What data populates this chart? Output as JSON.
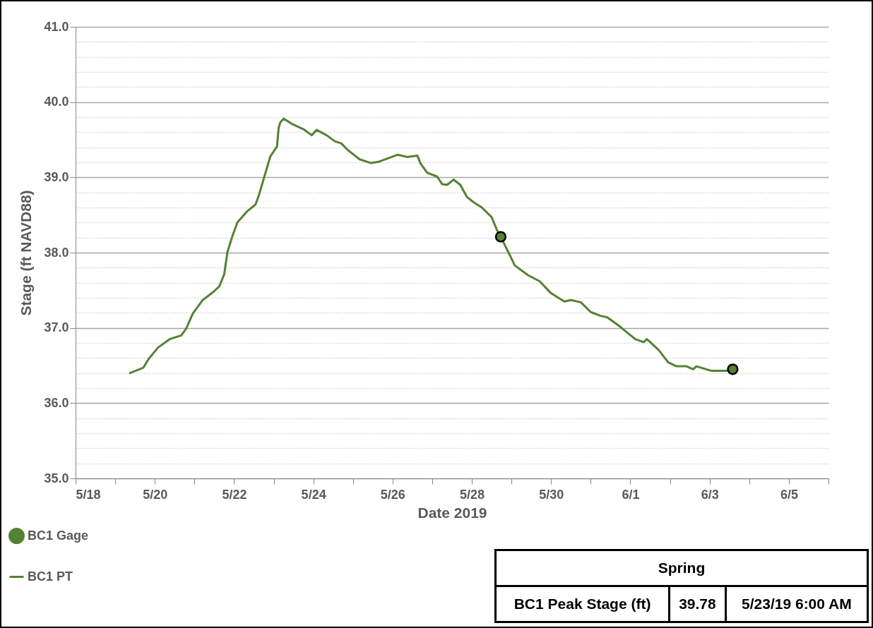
{
  "chart_data": {
    "type": "line",
    "xlabel": "Date 2019",
    "ylabel": "Stage (ft NAVD88)",
    "xlim": [
      "2019-05-18",
      "2019-06-06"
    ],
    "xticks": [
      {
        "value": "2019-05-18",
        "label": "5/18"
      },
      {
        "value": "2019-05-19",
        "label": null
      },
      {
        "value": "2019-05-20",
        "label": "5/20"
      },
      {
        "value": "2019-05-21",
        "label": null
      },
      {
        "value": "2019-05-22",
        "label": "5/22"
      },
      {
        "value": "2019-05-23",
        "label": null
      },
      {
        "value": "2019-05-24",
        "label": "5/24"
      },
      {
        "value": "2019-05-25",
        "label": null
      },
      {
        "value": "2019-05-26",
        "label": "5/26"
      },
      {
        "value": "2019-05-27",
        "label": null
      },
      {
        "value": "2019-05-28",
        "label": "5/28"
      },
      {
        "value": "2019-05-29",
        "label": null
      },
      {
        "value": "2019-05-30",
        "label": "5/30"
      },
      {
        "value": "2019-05-31",
        "label": null
      },
      {
        "value": "2019-06-01",
        "label": "6/1"
      },
      {
        "value": "2019-06-02",
        "label": null
      },
      {
        "value": "2019-06-03",
        "label": "6/3"
      },
      {
        "value": "2019-06-04",
        "label": null
      },
      {
        "value": "2019-06-05",
        "label": "6/5"
      },
      {
        "value": "2019-06-06",
        "label": null
      }
    ],
    "ylim": [
      35,
      41
    ],
    "yticks": [
      {
        "value": 35,
        "label": "35.0"
      },
      {
        "value": 35.2,
        "label": null
      },
      {
        "value": 35.4,
        "label": null
      },
      {
        "value": 35.6,
        "label": null
      },
      {
        "value": 35.8,
        "label": null
      },
      {
        "value": 36,
        "label": "36.0"
      },
      {
        "value": 36.2,
        "label": null
      },
      {
        "value": 36.4,
        "label": null
      },
      {
        "value": 36.6,
        "label": null
      },
      {
        "value": 36.8,
        "label": null
      },
      {
        "value": 37,
        "label": "37.0"
      },
      {
        "value": 37.2,
        "label": null
      },
      {
        "value": 37.4,
        "label": null
      },
      {
        "value": 37.6,
        "label": null
      },
      {
        "value": 37.8,
        "label": null
      },
      {
        "value": 38,
        "label": "38.0"
      },
      {
        "value": 38.2,
        "label": null
      },
      {
        "value": 38.4,
        "label": null
      },
      {
        "value": 38.6,
        "label": null
      },
      {
        "value": 38.8,
        "label": null
      },
      {
        "value": 39,
        "label": "39.0"
      },
      {
        "value": 39.2,
        "label": null
      },
      {
        "value": 39.4,
        "label": null
      },
      {
        "value": 39.6,
        "label": null
      },
      {
        "value": 39.8,
        "label": null
      },
      {
        "value": 40,
        "label": "40.0"
      },
      {
        "value": 40.2,
        "label": null
      },
      {
        "value": 40.4,
        "label": null
      },
      {
        "value": 40.6,
        "label": null
      },
      {
        "value": 40.8,
        "label": null
      },
      {
        "value": 41,
        "label": "41.0"
      }
    ],
    "grid": "y",
    "legend": "bottom left",
    "series": [
      {
        "name": "BC1 Gage",
        "type": "scatter",
        "marker": "circle",
        "color": "#548235",
        "x": [
          "2019-05-28T17:30",
          "2019-06-03T14:00"
        ],
        "values": [
          38.21,
          36.45
        ]
      },
      {
        "name": "BC1 PT",
        "type": "line",
        "marker": "none",
        "line_style": "solid",
        "color": "#548235",
        "x": [
          "2019-05-19T09:00",
          "2019-05-19T17:00",
          "2019-05-19T20:00",
          "2019-05-20T02:00",
          "2019-05-20T09:00",
          "2019-05-20T16:00",
          "2019-05-20T19:00",
          "2019-05-20T23:00",
          "2019-05-21T05:00",
          "2019-05-21T11:00",
          "2019-05-21T15:00",
          "2019-05-21T18:00",
          "2019-05-21T20:00",
          "2019-05-21T23:00",
          "2019-05-22T02:00",
          "2019-05-22T08:00",
          "2019-05-22T13:00",
          "2019-05-22T15:00",
          "2019-05-22T19:00",
          "2019-05-22T22:00",
          "2019-05-23T02:00",
          "2019-05-23T03:00",
          "2019-05-23T04:00",
          "2019-05-23T06:00",
          "2019-05-23T11:00",
          "2019-05-23T18:00",
          "2019-05-23T23:00",
          "2019-05-24T02:00",
          "2019-05-24T08:00",
          "2019-05-24T13:00",
          "2019-05-24T17:00",
          "2019-05-24T21:00",
          "2019-05-25T04:00",
          "2019-05-25T11:00",
          "2019-05-25T16:00",
          "2019-05-26T03:00",
          "2019-05-26T09:00",
          "2019-05-26T15:00",
          "2019-05-26T17:00",
          "2019-05-26T21:00",
          "2019-05-27T03:00",
          "2019-05-27T06:00",
          "2019-05-27T09:00",
          "2019-05-27T13:00",
          "2019-05-27T17:00",
          "2019-05-27T21:00",
          "2019-05-28T01:00",
          "2019-05-28T06:00",
          "2019-05-28T12:00",
          "2019-05-28T15:00",
          "2019-05-28T17:30",
          "2019-05-28T22:00",
          "2019-05-29T02:00",
          "2019-05-29T10:00",
          "2019-05-29T17:00",
          "2019-05-30T00:00",
          "2019-05-30T08:00",
          "2019-05-30T12:00",
          "2019-05-30T18:00",
          "2019-05-31T00:00",
          "2019-05-31T06:00",
          "2019-05-31T10:00",
          "2019-05-31T17:00",
          "2019-05-31T22:00",
          "2019-06-01T03:00",
          "2019-06-01T08:00",
          "2019-06-01T10:00",
          "2019-06-01T17:00",
          "2019-06-01T23:00",
          "2019-06-02T04:00",
          "2019-06-02T10:00",
          "2019-06-02T14:00",
          "2019-06-02T16:00",
          "2019-06-02T22:00",
          "2019-06-03T01:00",
          "2019-06-03T12:00"
        ],
        "values": [
          36.4,
          36.47,
          36.58,
          36.74,
          36.85,
          36.9,
          36.99,
          37.19,
          37.37,
          37.47,
          37.55,
          37.71,
          38.01,
          38.22,
          38.4,
          38.55,
          38.64,
          38.76,
          39.06,
          39.28,
          39.41,
          39.66,
          39.73,
          39.78,
          39.71,
          39.64,
          39.56,
          39.63,
          39.56,
          39.48,
          39.45,
          39.36,
          39.24,
          39.19,
          39.21,
          39.3,
          39.27,
          39.29,
          39.18,
          39.06,
          39.01,
          38.91,
          38.9,
          38.97,
          38.9,
          38.74,
          38.67,
          38.6,
          38.47,
          38.31,
          38.21,
          38.01,
          37.83,
          37.7,
          37.62,
          37.46,
          37.35,
          37.37,
          37.34,
          37.21,
          37.16,
          37.14,
          37.03,
          36.94,
          36.85,
          36.81,
          36.85,
          36.71,
          36.54,
          36.49,
          36.49,
          36.45,
          36.49,
          36.45,
          36.43,
          36.43
        ]
      }
    ],
    "annotations": [
      "Spring",
      "BC1 Peak Stage (ft)",
      "39.78",
      "5/23/19 6:00 AM"
    ]
  }
}
